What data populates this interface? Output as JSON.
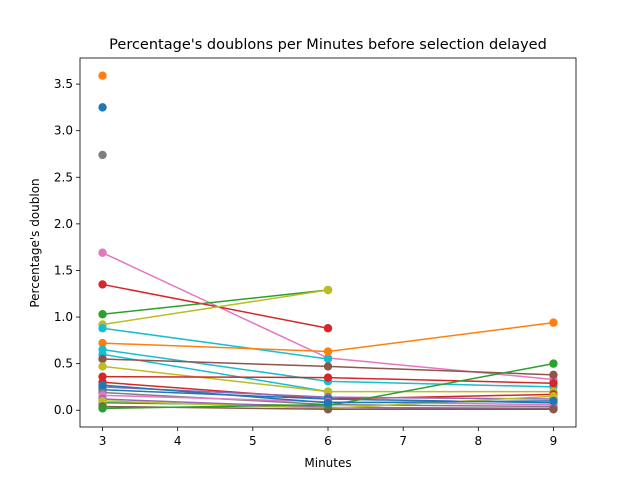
{
  "chart_data": {
    "type": "line",
    "title": "Percentage's doublons per Minutes before selection delayed",
    "xlabel": "Minutes",
    "ylabel": "Percentage's doublon",
    "xlim": [
      2.7,
      9.3
    ],
    "ylim": [
      -0.18,
      3.78
    ],
    "x_ticks": [
      3,
      4,
      5,
      6,
      7,
      8,
      9
    ],
    "y_ticks": [
      0.0,
      0.5,
      1.0,
      1.5,
      2.0,
      2.5,
      3.0,
      3.5
    ],
    "y_tick_labels": [
      "0.0",
      "0.5",
      "1.0",
      "1.5",
      "2.0",
      "2.5",
      "3.0",
      "3.5"
    ],
    "grid": false,
    "legend": "none",
    "series": [
      {
        "color": "#1f77b4",
        "points": [
          [
            3,
            3.25
          ]
        ]
      },
      {
        "color": "#ff7f0e",
        "points": [
          [
            3,
            3.59
          ]
        ]
      },
      {
        "color": "#7f7f7f",
        "points": [
          [
            3,
            2.74
          ]
        ]
      },
      {
        "color": "#e377c2",
        "points": [
          [
            3,
            1.69
          ],
          [
            6,
            0.56
          ],
          [
            9,
            0.33
          ]
        ]
      },
      {
        "color": "#d62728",
        "points": [
          [
            3,
            1.35
          ],
          [
            6,
            0.88
          ]
        ]
      },
      {
        "color": "#2ca02c",
        "points": [
          [
            3,
            1.03
          ],
          [
            6,
            1.29
          ]
        ]
      },
      {
        "color": "#bcbd22",
        "points": [
          [
            3,
            0.92
          ],
          [
            6,
            1.29
          ]
        ]
      },
      {
        "color": "#17becf",
        "points": [
          [
            3,
            0.88
          ],
          [
            6,
            0.55
          ]
        ]
      },
      {
        "color": "#ff7f0e",
        "points": [
          [
            3,
            0.72
          ],
          [
            6,
            0.63
          ],
          [
            9,
            0.94
          ]
        ]
      },
      {
        "color": "#17becf",
        "points": [
          [
            3,
            0.65
          ],
          [
            6,
            0.31
          ],
          [
            9,
            0.25
          ]
        ]
      },
      {
        "color": "#17becf",
        "points": [
          [
            3,
            0.6
          ],
          [
            6,
            0.2
          ]
        ]
      },
      {
        "color": "#8c564b",
        "points": [
          [
            3,
            0.55
          ],
          [
            6,
            0.47
          ],
          [
            9,
            0.38
          ]
        ]
      },
      {
        "color": "#bcbd22",
        "points": [
          [
            3,
            0.47
          ],
          [
            6,
            0.2
          ],
          [
            9,
            0.2
          ]
        ]
      },
      {
        "color": "#d62728",
        "points": [
          [
            3,
            0.36
          ],
          [
            6,
            0.35
          ],
          [
            9,
            0.29
          ]
        ]
      },
      {
        "color": "#d62728",
        "points": [
          [
            3,
            0.3
          ],
          [
            6,
            0.12
          ],
          [
            9,
            0.17
          ]
        ]
      },
      {
        "color": "#9467bd",
        "points": [
          [
            3,
            0.25
          ],
          [
            6,
            0.14
          ],
          [
            9,
            0.12
          ]
        ]
      },
      {
        "color": "#1f77b4",
        "points": [
          [
            3,
            0.22
          ],
          [
            6,
            0.12
          ],
          [
            9,
            0.08
          ]
        ]
      },
      {
        "color": "#7f7f7f",
        "points": [
          [
            3,
            0.19
          ],
          [
            6,
            0.06
          ],
          [
            9,
            0.04
          ]
        ]
      },
      {
        "color": "#e377c2",
        "points": [
          [
            3,
            0.16
          ],
          [
            6,
            0.09
          ],
          [
            9,
            0.06
          ]
        ]
      },
      {
        "color": "#2ca02c",
        "points": [
          [
            3,
            0.08
          ],
          [
            6,
            0.05
          ],
          [
            9,
            0.5
          ]
        ]
      },
      {
        "color": "#9467bd",
        "points": [
          [
            3,
            0.12
          ],
          [
            6,
            0.03
          ],
          [
            9,
            0.02
          ]
        ]
      },
      {
        "color": "#bcbd22",
        "points": [
          [
            3,
            0.1
          ],
          [
            6,
            0.02
          ],
          [
            9,
            0.15
          ]
        ]
      },
      {
        "color": "#8c564b",
        "points": [
          [
            3,
            0.04
          ],
          [
            6,
            0.01
          ],
          [
            9,
            0.01
          ]
        ]
      },
      {
        "color": "#2ca02c",
        "points": [
          [
            3,
            0.02
          ],
          [
            6,
            0.06
          ]
        ]
      },
      {
        "color": "#1f77b4",
        "points": [
          [
            3,
            0.27
          ],
          [
            6,
            0.08
          ],
          [
            9,
            0.1
          ]
        ]
      }
    ]
  }
}
